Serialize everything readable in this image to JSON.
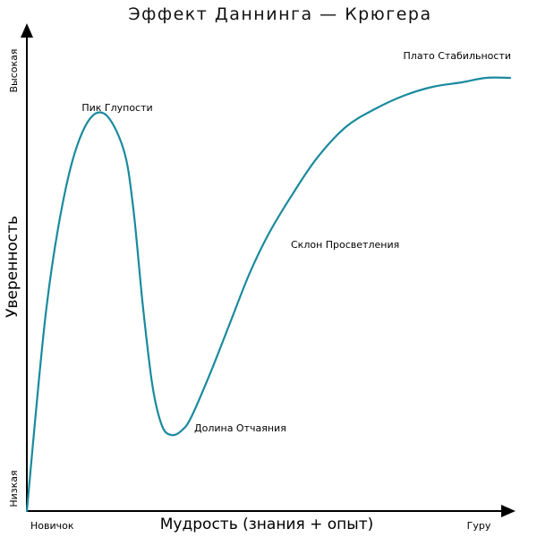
{
  "title": "Эффект Даннинга — Крюгера",
  "axes": {
    "x_label": "Мудрость (знания + опыт)",
    "y_label": "Уверенность",
    "x_start": "Новичок",
    "x_end": "Гуру",
    "y_low": "Низкая",
    "y_high": "Высокая"
  },
  "annotations": {
    "peak": "Пик Глупости",
    "valley": "Долина Отчаяния",
    "slope": "Склон Просветления",
    "plateau": "Плато Стабильности"
  },
  "colors": {
    "curve": "#1a8a9e",
    "axis": "#000000"
  },
  "chart_data": {
    "type": "line",
    "title": "Эффект Даннинга — Крюгера",
    "xlabel": "Мудрость (знания + опыт)",
    "ylabel": "Уверенность",
    "x_ticks": [
      "Новичок",
      "Гуру"
    ],
    "y_ticks": [
      "Низкая",
      "Высокая"
    ],
    "grid": false,
    "series": [
      {
        "x": [
          0,
          4,
          8,
          12,
          16,
          20,
          22,
          24,
          26,
          28,
          30,
          32,
          34,
          38,
          42,
          46,
          50,
          55,
          60,
          66,
          72,
          78,
          84,
          90,
          95,
          100
        ],
        "y": [
          0,
          45,
          72,
          86,
          89,
          81,
          68,
          46,
          28,
          19,
          17,
          18,
          21,
          31,
          42,
          53,
          62,
          71,
          79,
          86,
          90,
          93,
          95,
          96,
          97,
          97
        ]
      }
    ],
    "annotations": [
      "Пик Глупости",
      "Долина Отчаяния",
      "Склон Просветления",
      "Плато Стабильности"
    ]
  }
}
